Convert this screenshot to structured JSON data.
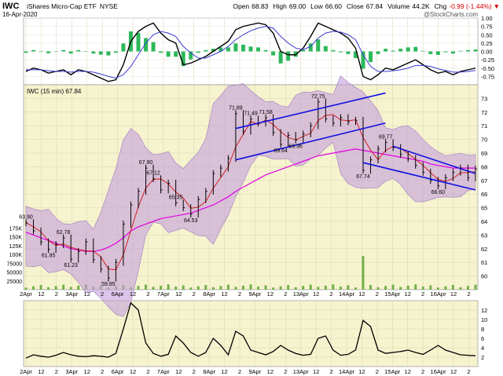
{
  "header": {
    "symbol": "IWC",
    "name": "iShares Micro-Cap ETF",
    "exchange": "NYSE",
    "date": "16-Apr-2020",
    "open_label": "Open",
    "open": "68.83",
    "high_label": "High",
    "high": "69.00",
    "low_label": "Low",
    "low": "66.60",
    "close_label": "Close",
    "close": "67.84",
    "volume_label": "Volume",
    "volume": "44.2K",
    "chg_label": "Chg",
    "chg": "-0.99 (-1.44%)",
    "chg_arrow": "▼",
    "watermark": "@StockCharts.com"
  },
  "colors": {
    "price_bg": "#f6f3cf",
    "oscillator_bg": "#f6f3cf",
    "band_fill": "#c49fdc",
    "sma_long": "#e000e0",
    "histogram": "#2db85a",
    "trendline": "#1010e0",
    "volume_bar": "#74b04a"
  },
  "chart_data": {
    "type": "line",
    "x_labels": [
      "2Apr",
      "12",
      "2",
      "3Apr",
      "12",
      "2",
      "6Apr",
      "12",
      "2",
      "7Apr",
      "12",
      "2",
      "8Apr",
      "12",
      "2",
      "9Apr",
      "12",
      "2",
      "13Apr",
      "12",
      "2",
      "14Apr",
      "12",
      "2",
      "15Apr",
      "12",
      "2",
      "16Apr",
      "12",
      "2"
    ],
    "price_panel": {
      "legend": "IWC (15 min) 67.84",
      "ylim": [
        59,
        74
      ],
      "yticks": [
        "60",
        "61",
        "62",
        "63",
        "64",
        "65",
        "66",
        "67",
        "68",
        "69",
        "70",
        "71",
        "72",
        "73"
      ],
      "volume_ticks": [
        "25000",
        "50000",
        "75000",
        "100K",
        "125K",
        "150K",
        "175K"
      ],
      "volume_max": 200000,
      "series": [
        {
          "kind": "price",
          "x": [
            0,
            1,
            2,
            3,
            4,
            5,
            6,
            7,
            8,
            9,
            10,
            11,
            12,
            13,
            14,
            15,
            16,
            17,
            18,
            19,
            20,
            21,
            22,
            23,
            24,
            25,
            26,
            27,
            28,
            29,
            30,
            31,
            32,
            33,
            34,
            35,
            36,
            37,
            38,
            39,
            40,
            41,
            42,
            43,
            44,
            45,
            46,
            47,
            48,
            49,
            50,
            51,
            52,
            53,
            54,
            55,
            56,
            57,
            58,
            59,
            60
          ],
          "y": [
            63.9,
            63.3,
            62.5,
            61.95,
            62.3,
            62.78,
            61.23,
            61.8,
            62.5,
            61.2,
            60.5,
            59.85,
            61.0,
            63.8,
            65.2,
            66.2,
            67.9,
            67.12,
            66.3,
            66.8,
            65.35,
            65.0,
            64.53,
            65.6,
            66.2,
            67.5,
            67.9,
            68.6,
            71.89,
            70.6,
            71.49,
            71.2,
            71.58,
            70.5,
            69.64,
            70.3,
            69.96,
            70.4,
            71.0,
            72.75,
            71.5,
            71.2,
            71.6,
            71.3,
            71.4,
            67.74,
            68.5,
            69.3,
            69.77,
            69.4,
            68.9,
            68.6,
            68.1,
            67.6,
            67.0,
            66.6,
            67.2,
            67.6,
            67.9,
            67.2,
            67.84
          ]
        },
        {
          "name": "",
          "kind": "sma_long",
          "y": [
            63.2,
            63.0,
            62.8,
            62.6,
            62.4,
            62.2,
            62.0,
            61.9,
            61.8,
            61.8,
            61.9,
            62.1,
            62.4,
            62.8,
            63.3,
            63.6,
            63.8,
            64.0,
            64.2,
            64.3,
            64.4,
            64.5,
            64.6,
            64.8,
            65.0,
            65.2,
            65.5,
            65.8,
            66.2,
            66.5,
            66.8,
            67.1,
            67.4,
            67.6,
            67.8,
            68.0,
            68.2,
            68.4,
            68.6,
            68.8,
            68.9,
            69.0,
            69.1,
            69.2,
            69.3,
            69.2,
            69.1,
            69.0,
            68.9,
            68.8,
            68.7,
            68.6,
            68.5,
            68.4,
            68.2,
            68.1,
            68.0,
            67.9,
            67.9,
            67.9,
            67.9
          ]
        }
      ],
      "annotations": [
        {
          "label": "63.90"
        },
        {
          "label": "62.78"
        },
        {
          "label": "61.95"
        },
        {
          "label": "61.23"
        },
        {
          "label": "59.85"
        },
        {
          "label": "67.90"
        },
        {
          "label": "67.12"
        },
        {
          "label": "65.35"
        },
        {
          "label": "64.53"
        },
        {
          "label": "71.89"
        },
        {
          "label": "71.49"
        },
        {
          "label": "71.58"
        },
        {
          "label": "69.64"
        },
        {
          "label": "69.96"
        },
        {
          "label": "72.75"
        },
        {
          "label": "67.74"
        },
        {
          "label": "69.77"
        },
        {
          "label": "66.60"
        }
      ],
      "trendlines": [
        {
          "from": [
            28,
            70.8
          ],
          "to": [
            48,
            73.4
          ]
        },
        {
          "from": [
            28,
            68.5
          ],
          "to": [
            48,
            71.2
          ]
        },
        {
          "from": [
            45,
            68.3
          ],
          "to": [
            60,
            66.3
          ]
        },
        {
          "from": [
            49,
            69.5
          ],
          "to": [
            60,
            67.5
          ]
        }
      ]
    },
    "top_panel": {
      "ylim": [
        -1,
        1
      ],
      "yticks": [
        "1.00",
        "0.75",
        "0.50",
        "0.25",
        "0.00",
        "-0.25",
        "-0.50",
        "-0.75"
      ],
      "macd": [
        -0.6,
        -0.5,
        -0.55,
        -0.65,
        -0.6,
        -0.55,
        -0.7,
        -0.55,
        -0.6,
        -0.7,
        -0.8,
        -0.9,
        -0.85,
        -0.4,
        0.3,
        0.6,
        0.75,
        0.85,
        0.55,
        0.35,
        0.25,
        -0.4,
        -0.35,
        -0.25,
        -0.15,
        0.0,
        0.15,
        0.3,
        0.65,
        0.75,
        0.8,
        0.85,
        0.8,
        0.55,
        0.0,
        -0.1,
        -0.1,
        0.1,
        0.45,
        0.85,
        0.75,
        0.65,
        0.55,
        0.4,
        0.1,
        -0.75,
        -0.85,
        -0.7,
        -0.5,
        -0.55,
        -0.45,
        -0.35,
        -0.25,
        -0.4,
        -0.55,
        -0.65,
        -0.6,
        -0.7,
        -0.6,
        -0.55,
        -0.5
      ],
      "signal": [
        -0.55,
        -0.55,
        -0.55,
        -0.58,
        -0.6,
        -0.6,
        -0.62,
        -0.6,
        -0.6,
        -0.62,
        -0.68,
        -0.75,
        -0.8,
        -0.7,
        -0.45,
        -0.1,
        0.25,
        0.5,
        0.6,
        0.55,
        0.45,
        0.15,
        -0.05,
        -0.2,
        -0.2,
        -0.1,
        0.0,
        0.15,
        0.35,
        0.5,
        0.62,
        0.7,
        0.75,
        0.7,
        0.45,
        0.25,
        0.1,
        0.05,
        0.15,
        0.4,
        0.55,
        0.6,
        0.58,
        0.5,
        0.35,
        -0.1,
        -0.45,
        -0.6,
        -0.6,
        -0.58,
        -0.55,
        -0.5,
        -0.42,
        -0.42,
        -0.45,
        -0.52,
        -0.57,
        -0.62,
        -0.62,
        -0.6,
        -0.57
      ]
    },
    "bottom_panel": {
      "ylim": [
        0,
        14
      ],
      "yticks": [
        "2",
        "4",
        "6",
        "8",
        "10",
        "12"
      ],
      "values": [
        1.8,
        2.5,
        2.2,
        2.0,
        2.4,
        3.0,
        2.5,
        2.2,
        2.1,
        2.3,
        2.2,
        2.0,
        2.8,
        8.0,
        13.5,
        12.0,
        5.0,
        2.8,
        2.2,
        2.6,
        6.5,
        5.0,
        3.0,
        2.2,
        3.0,
        6.0,
        4.5,
        2.5,
        7.5,
        6.5,
        3.5,
        3.0,
        2.5,
        3.2,
        4.5,
        3.5,
        2.8,
        2.4,
        2.6,
        6.0,
        6.5,
        3.5,
        2.4,
        2.6,
        3.5,
        9.8,
        8.5,
        3.5,
        2.8,
        3.0,
        3.2,
        3.5,
        3.0,
        2.6,
        3.5,
        4.5,
        3.5,
        3.0,
        2.5,
        2.4,
        2.3
      ]
    }
  }
}
